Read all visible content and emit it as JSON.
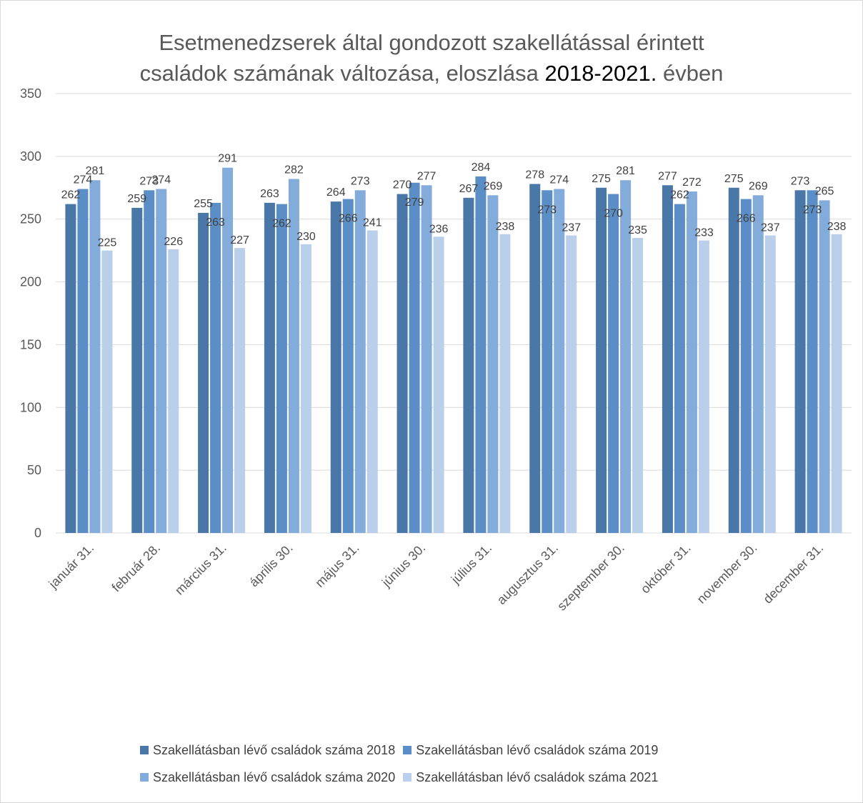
{
  "chart_data": {
    "type": "bar",
    "title_part1": "Esetmenedzserek által gondozott szakellátással érintett",
    "title_part2_pre": "családok számának változása, eloszlása ",
    "title_part2_highlight": "2018-2021.",
    "title_part2_post": " évben",
    "ylim": [
      0,
      350
    ],
    "y_ticks": [
      "0",
      "50",
      "100",
      "150",
      "200",
      "250",
      "300",
      "350"
    ],
    "grid": true,
    "legend_position": "bottom",
    "categories": [
      "január 31.",
      "február 28.",
      "március 31.",
      "április 30.",
      "május 31.",
      "június 30.",
      "július 31.",
      "augusztus 31.",
      "szeptember 30.",
      "október 31.",
      "november 30.",
      "december 31."
    ],
    "series": [
      {
        "name": "Szakellátásban lévő családok száma 2018",
        "color": "#4877a8",
        "values": [
          262,
          259,
          255,
          263,
          264,
          270,
          267,
          278,
          275,
          277,
          275,
          273
        ]
      },
      {
        "name": "Szakellátásban lévő családok száma 2019",
        "color": "#5b8ec6",
        "values": [
          274,
          273,
          263,
          262,
          266,
          279,
          284,
          273,
          270,
          262,
          266,
          273
        ]
      },
      {
        "name": "Szakellátásban lévő családok száma 2020",
        "color": "#84acdb",
        "values": [
          281,
          274,
          291,
          282,
          273,
          277,
          269,
          274,
          281,
          272,
          269,
          265
        ]
      },
      {
        "name": "Szakellátásban lévő családok száma 2021",
        "color": "#b9cfea",
        "values": [
          225,
          226,
          227,
          230,
          241,
          236,
          238,
          237,
          235,
          233,
          237,
          238
        ]
      }
    ]
  }
}
